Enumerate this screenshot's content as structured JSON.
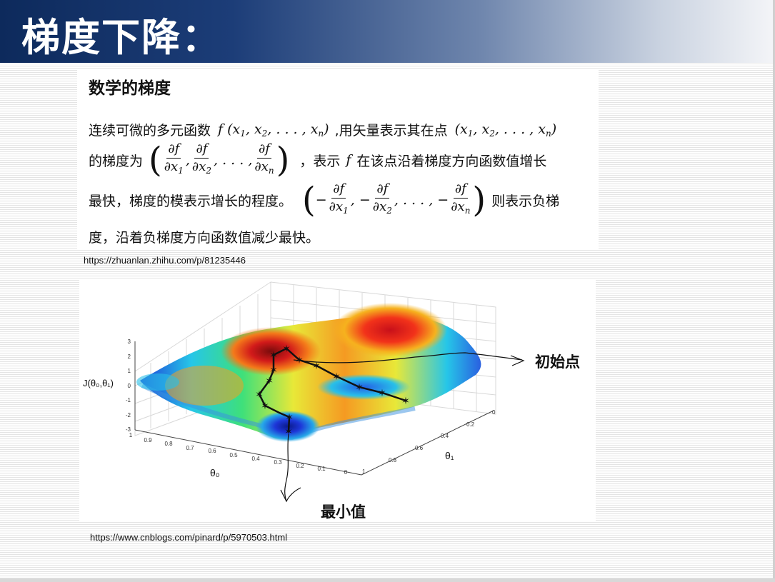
{
  "slide": {
    "title": "梯度下降："
  },
  "text_section": {
    "heading": "数学的梯度",
    "line1_a": "连续可微的多元函数",
    "line1_b": ",用矢量表示其在点",
    "line2_a": "的梯度为",
    "line2_b": "，表示",
    "line2_c": "在该点沿着梯度方向函数值增长",
    "line3_a": "最快，梯度的模表示增长的程度。",
    "line3_b": "则表示负梯",
    "line4": "度，沿着负梯度方向函数值减少最快。",
    "math_f": "f",
    "math_partial_f": "∂f",
    "den_x1": "∂x",
    "sub1": "1",
    "sub2": "2",
    "subn": "n",
    "comma_dots": ", . . . ,"
  },
  "source1": "https://zhuanlan.zhihu.com/p/81235446",
  "figure": {
    "z_axis_label": "J(θ₀,θ₁)",
    "theta0_label": "θ₀",
    "theta1_label": "θ₁",
    "annotation_start": "初始点",
    "annotation_min": "最小值",
    "z_ticks": [
      "3",
      "2",
      "1",
      "0",
      "-1",
      "-2",
      "-3"
    ],
    "theta0_ticks": [
      "1",
      "0.9",
      "0.8",
      "0.7",
      "0.6",
      "0.5",
      "0.4",
      "0.3",
      "0.2",
      "0.1",
      "0"
    ],
    "theta1_ticks": [
      "0",
      "0.2",
      "0.4",
      "0.6",
      "0.8",
      "1"
    ]
  },
  "source2": "https://www.cnblogs.com/pinard/p/5970503.html"
}
